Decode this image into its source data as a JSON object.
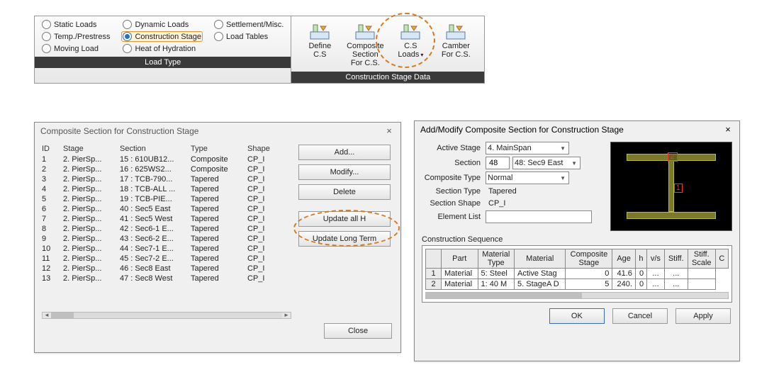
{
  "colors": {
    "accent": "#d77a1a",
    "ribbonFooter": "#3a3a3a",
    "select": "#2a6fbb"
  },
  "ribbon": {
    "groups": [
      {
        "footer": "Load Type",
        "radios": [
          {
            "label": "Static Loads",
            "selected": false
          },
          {
            "label": "Dynamic Loads",
            "selected": false
          },
          {
            "label": "Settlement/Misc.",
            "selected": false
          },
          {
            "label": "Temp./Prestress",
            "selected": false
          },
          {
            "label": "Construction Stage",
            "selected": true
          },
          {
            "label": "Load Tables",
            "selected": false
          },
          {
            "label": "Moving Load",
            "selected": false
          },
          {
            "label": "Heat of Hydration",
            "selected": false
          }
        ]
      },
      {
        "footer": "Construction Stage Data",
        "tools": [
          {
            "label": "Define\nC.S"
          },
          {
            "label": "Composite\nSection For C.S."
          },
          {
            "label": "C.S\nLoads",
            "menu": true
          },
          {
            "label": "Camber\nFor C.S."
          }
        ]
      }
    ]
  },
  "leftDialog": {
    "title": "Composite Section for Construction Stage",
    "headers": [
      "ID",
      "Stage",
      "Section",
      "Type",
      "Shape"
    ],
    "rows": [
      [
        "1",
        "2. PierSp...",
        "15 : 610UB12...",
        "Composite",
        "CP_I"
      ],
      [
        "2",
        "2. PierSp...",
        "16 : 625WS2...",
        "Composite",
        "CP_I"
      ],
      [
        "3",
        "2. PierSp...",
        "17 : TCB-790...",
        "Tapered",
        "CP_I"
      ],
      [
        "4",
        "2. PierSp...",
        "18 : TCB-ALL ...",
        "Tapered",
        "CP_I"
      ],
      [
        "5",
        "2. PierSp...",
        "19 : TCB-PIE...",
        "Tapered",
        "CP_I"
      ],
      [
        "6",
        "2. PierSp...",
        "40 : Sec5 East",
        "Tapered",
        "CP_I"
      ],
      [
        "7",
        "2. PierSp...",
        "41 : Sec5 West",
        "Tapered",
        "CP_I"
      ],
      [
        "8",
        "2. PierSp...",
        "42 : Sec6-1 E...",
        "Tapered",
        "CP_I"
      ],
      [
        "9",
        "2. PierSp...",
        "43 : Sec6-2 E...",
        "Tapered",
        "CP_I"
      ],
      [
        "10",
        "2. PierSp...",
        "44 : Sec7-1 E...",
        "Tapered",
        "CP_I"
      ],
      [
        "11",
        "2. PierSp...",
        "45 : Sec7-2 E...",
        "Tapered",
        "CP_I"
      ],
      [
        "12",
        "2. PierSp...",
        "46 : Sec8 East",
        "Tapered",
        "CP_I"
      ],
      [
        "13",
        "2. PierSp...",
        "47 : Sec8 West",
        "Tapered",
        "CP_I"
      ]
    ],
    "buttons": {
      "add": "Add...",
      "modify": "Modify...",
      "delete": "Delete",
      "updateAllH": "Update all H",
      "updateLong": "Update Long Term",
      "close": "Close"
    }
  },
  "rightDialog": {
    "title": "Add/Modify Composite Section for Construction Stage",
    "fields": {
      "activeStage_label": "Active Stage",
      "activeStage_value": "4. MainSpan",
      "section_label": "Section",
      "section_value": "48",
      "section_detail": "48: Sec9 East",
      "compositeType_label": "Composite Type",
      "compositeType_value": "Normal",
      "sectionType_label": "Section Type",
      "sectionType_value": "Tapered",
      "sectionShape_label": "Section Shape",
      "sectionShape_value": "CP_I",
      "elementList_label": "Element List",
      "elementList_value": ""
    },
    "preview": {
      "tag1": "1",
      "tag2": "2"
    },
    "sequence": {
      "title": "Construction Sequence",
      "headers": [
        "Part",
        "Material\nType",
        "Material",
        "Composite\nStage",
        "Age",
        "h",
        "v/s",
        "Stiff.",
        "Stiff.\nScale",
        "C"
      ],
      "rows": [
        [
          "1",
          "Material",
          "5: Steel",
          "Active Stag",
          "0",
          "41.6",
          "0",
          "...",
          "...",
          ""
        ],
        [
          "2",
          "Material",
          "1: 40 M",
          "5. StageA D",
          "5",
          "240.",
          "0",
          "...",
          "...",
          ""
        ]
      ]
    },
    "buttons": {
      "ok": "OK",
      "cancel": "Cancel",
      "apply": "Apply"
    }
  }
}
